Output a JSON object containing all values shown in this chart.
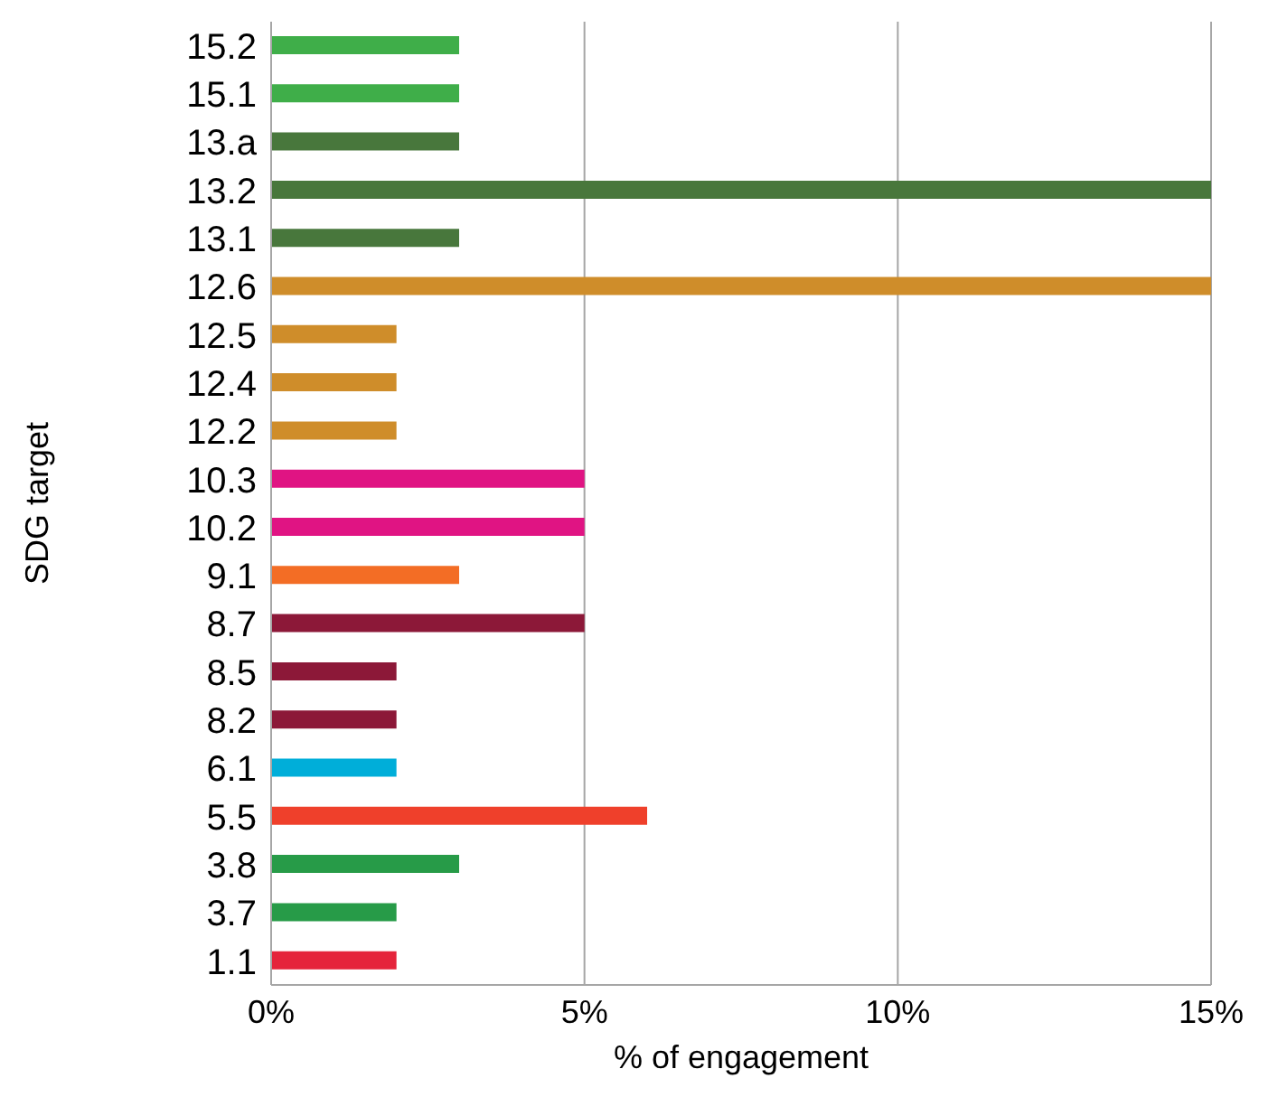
{
  "chart_data": {
    "type": "bar",
    "orientation": "horizontal",
    "xlabel": "% of engagement",
    "ylabel": "SDG target",
    "categories": [
      "15.2",
      "15.1",
      "13.a",
      "13.2",
      "13.1",
      "12.6",
      "12.5",
      "12.4",
      "12.2",
      "10.3",
      "10.2",
      "9.1",
      "8.7",
      "8.5",
      "8.2",
      "6.1",
      "5.5",
      "3.8",
      "3.7",
      "1.1"
    ],
    "values": [
      3,
      3,
      3,
      15,
      3,
      15,
      2,
      2,
      2,
      5,
      5,
      3,
      5,
      2,
      2,
      2,
      6,
      3,
      2,
      2
    ],
    "colors": [
      "#3fae49",
      "#3fae49",
      "#48773c",
      "#48773c",
      "#48773c",
      "#cf8d2a",
      "#cf8d2a",
      "#cf8d2a",
      "#cf8d2a",
      "#e01483",
      "#e01483",
      "#f36d25",
      "#8c1838",
      "#8c1838",
      "#8c1838",
      "#00aed9",
      "#ef402b",
      "#279b48",
      "#279b48",
      "#e5243b"
    ],
    "xlim": [
      0,
      15
    ],
    "xticks": [
      {
        "value": 0,
        "label": "0%"
      },
      {
        "value": 5,
        "label": "5%"
      },
      {
        "value": 10,
        "label": "10%"
      },
      {
        "value": 15,
        "label": "15%"
      }
    ],
    "grid": "x",
    "legend": false
  }
}
